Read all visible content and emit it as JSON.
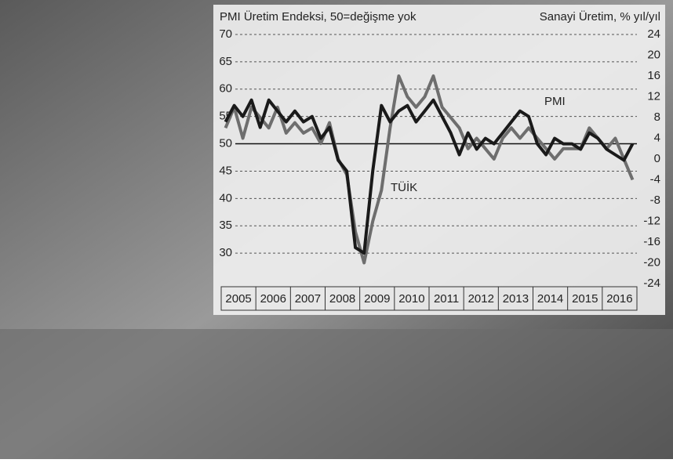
{
  "chart_data": {
    "type": "line",
    "title": "PMI Üretim Endeksi, 50=değişme yok",
    "subtitle": "Sanayi Üretim, % yıl/yıl",
    "categories": [
      "2005",
      null,
      null,
      null,
      "2006",
      null,
      null,
      null,
      "2007",
      null,
      null,
      null,
      "2008",
      null,
      null,
      null,
      "2009",
      null,
      null,
      null,
      "2010",
      null,
      null,
      null,
      "2011",
      null,
      null,
      null,
      "2012",
      null,
      null,
      null,
      "2013",
      null,
      null,
      null,
      "2014",
      null,
      null,
      null,
      "2015",
      null,
      null,
      null,
      "2016",
      null,
      null,
      null
    ],
    "series": [
      {
        "name": "PMI",
        "color": "#1a1a1a",
        "values": [
          54,
          57,
          55,
          58,
          53,
          58,
          56,
          54,
          56,
          54,
          55,
          51,
          53,
          47,
          45,
          31,
          30,
          45,
          57,
          54,
          56,
          57,
          54,
          56,
          58,
          55,
          52,
          48,
          52,
          49,
          51,
          50,
          52,
          54,
          56,
          55,
          50,
          48,
          51,
          50,
          50,
          49,
          52,
          51,
          49,
          48,
          47,
          50
        ]
      },
      {
        "name": "TÜİK",
        "color": "#6e6e6e",
        "axis": "y2",
        "values": [
          6,
          10,
          4,
          10,
          8,
          6,
          10,
          5,
          7,
          5,
          6,
          3,
          7,
          0,
          -3,
          -14,
          -20,
          -12,
          -6,
          6,
          16,
          12,
          10,
          12,
          16,
          10,
          8,
          6,
          2,
          4,
          2,
          0,
          4,
          6,
          4,
          6,
          4,
          2,
          0,
          2,
          2,
          2,
          6,
          4,
          2,
          4,
          0,
          -4
        ]
      }
    ],
    "ylim": [
      25,
      70
    ],
    "yticks": [
      30,
      35,
      40,
      45,
      50,
      55,
      60,
      65,
      70
    ],
    "y2lim": [
      -24,
      24
    ],
    "y2ticks": [
      -24,
      -20,
      -16,
      -12,
      -8,
      -4,
      0,
      4,
      8,
      12,
      16,
      20,
      24
    ],
    "reference_line": 50,
    "grid": true
  }
}
